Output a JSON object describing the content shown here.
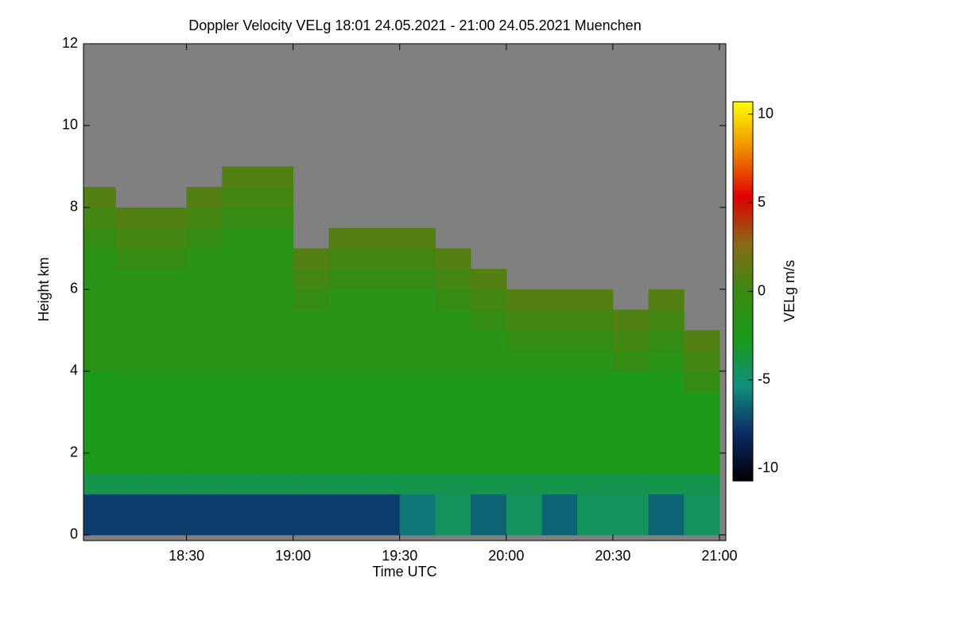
{
  "chart_data": {
    "type": "heatmap",
    "title": "Doppler Velocity VELg   18:01 24.05.2021 - 21:00 24.05.2021 Muenchen",
    "x_label": "Time UTC",
    "y_label": "Height km",
    "colorbar_label": "VELg m/s",
    "xlim": [
      18.0167,
      21.03
    ],
    "ylim": [
      -0.14,
      12
    ],
    "xticks": [
      {
        "value": 18.5,
        "label": "18:30"
      },
      {
        "value": 19,
        "label": "19:00"
      },
      {
        "value": 19.5,
        "label": "19:30"
      },
      {
        "value": 20,
        "label": "20:00"
      },
      {
        "value": 20.5,
        "label": "20:30"
      },
      {
        "value": 21,
        "label": "21:00"
      }
    ],
    "yticks": [
      0,
      2,
      4,
      6,
      8,
      10,
      12
    ],
    "clim": [
      -10.7,
      10.7
    ],
    "cticks": [
      -10,
      -5,
      0,
      5,
      10
    ],
    "colormap": [
      "#000000",
      "#0b2a66",
      "#10907e",
      "#1a9a1a",
      "#3a8a10",
      "#8a6a18",
      "#e00000",
      "#f08c00",
      "#ffff00"
    ],
    "missing_color": "#808080",
    "x_bins": [
      18.0167,
      18.1667,
      18.3333,
      18.5,
      18.6667,
      18.8333,
      19,
      19.1667,
      19.3333,
      19.5,
      19.6667,
      19.8333,
      20,
      20.1667,
      20.3333,
      20.5,
      20.6667,
      20.8333,
      21
    ],
    "y_bins": [
      0,
      0.5,
      1,
      1.5,
      2,
      2.5,
      3,
      3.5,
      4,
      4.5,
      5,
      5.5,
      6,
      6.5,
      7,
      7.5,
      8,
      8.5,
      9,
      9.5,
      10,
      10.5,
      11,
      11.5,
      12
    ],
    "z": [
      [
        -7.5,
        -7.5,
        -4,
        -2.5,
        -2.5,
        -2.5,
        -2.5,
        -2.5,
        -1.5,
        -1.5,
        -1.5,
        -1.5,
        -1.5,
        -1.5,
        -0.5,
        0.3,
        0.8,
        null,
        null,
        null,
        null,
        null,
        null,
        null
      ],
      [
        -7.5,
        -7.5,
        -4,
        -2.5,
        -2.5,
        -2.5,
        -2.5,
        -2.5,
        -1.5,
        -1.5,
        -1.5,
        -1.5,
        -1.5,
        -0.5,
        0.3,
        0.8,
        null,
        null,
        null,
        null,
        null,
        null,
        null,
        null
      ],
      [
        -7.5,
        -7.5,
        -4,
        -2.5,
        -2.5,
        -2.5,
        -2.5,
        -2.5,
        -1.5,
        -1.5,
        -1.5,
        -1.5,
        -1.5,
        -0.5,
        0.3,
        0.8,
        null,
        null,
        null,
        null,
        null,
        null,
        null,
        null
      ],
      [
        -7.5,
        -7.5,
        -4,
        -2.5,
        -2.5,
        -2.5,
        -2.5,
        -2.5,
        -1.5,
        -1.5,
        -1.5,
        -1.5,
        -1.5,
        -1.5,
        -0.5,
        0.3,
        0.8,
        null,
        null,
        null,
        null,
        null,
        null,
        null
      ],
      [
        -7.5,
        -7.5,
        -4,
        -2.5,
        -2.5,
        -2.5,
        -2.5,
        -2.5,
        -1.5,
        -1.5,
        -1.5,
        -1.5,
        -1.5,
        -1.5,
        -1.5,
        -0.5,
        0.3,
        0.8,
        null,
        null,
        null,
        null,
        null,
        null
      ],
      [
        -7.5,
        -7.5,
        -4,
        -2.5,
        -2.5,
        -2.5,
        -2.5,
        -2.5,
        -1.5,
        -1.5,
        -1.5,
        -1.5,
        -1.5,
        -1.5,
        -1.5,
        -0.5,
        0.3,
        0.8,
        null,
        null,
        null,
        null,
        null,
        null
      ],
      [
        -7.5,
        -7.5,
        -4,
        -2.5,
        -2.5,
        -2.5,
        -2.5,
        -2.5,
        -1.5,
        -1.5,
        -1.5,
        -0.5,
        0.3,
        0.8,
        null,
        null,
        null,
        null,
        null,
        null,
        null,
        null,
        null,
        null
      ],
      [
        -7.5,
        -7.5,
        -4,
        -2.5,
        -2.5,
        -2.5,
        -2.5,
        -2.5,
        -1.5,
        -1.5,
        -1.5,
        -1.5,
        -0.5,
        0.3,
        0.8,
        null,
        null,
        null,
        null,
        null,
        null,
        null,
        null,
        null
      ],
      [
        -7.5,
        -7.5,
        -4,
        -2.5,
        -2.5,
        -2.5,
        -2.5,
        -2.5,
        -1.5,
        -1.5,
        -1.5,
        -1.5,
        -0.5,
        0.3,
        0.8,
        null,
        null,
        null,
        null,
        null,
        null,
        null,
        null,
        null
      ],
      [
        -6,
        -6,
        -4,
        -2.5,
        -2.5,
        -2.5,
        -2.5,
        -2.5,
        -1.5,
        -1.5,
        -1.5,
        -1.5,
        -0.5,
        0.3,
        0.8,
        null,
        null,
        null,
        null,
        null,
        null,
        null,
        null,
        null
      ],
      [
        -4.5,
        -4.5,
        -4,
        -2.5,
        -2.5,
        -2.5,
        -2.5,
        -2.5,
        -1.5,
        -1.5,
        -1.5,
        -0.5,
        0.3,
        0.8,
        null,
        null,
        null,
        null,
        null,
        null,
        null,
        null,
        null,
        null
      ],
      [
        -6.5,
        -6.5,
        -4,
        -2.5,
        -2.5,
        -2.5,
        -2.5,
        -2.5,
        -1.5,
        -1.5,
        -0.5,
        0.3,
        0.8,
        null,
        null,
        null,
        null,
        null,
        null,
        null,
        null,
        null,
        null,
        null
      ],
      [
        -4.5,
        -4.5,
        -4,
        -2.5,
        -2.5,
        -2.5,
        -2.5,
        -2.5,
        -1.5,
        -0.5,
        0.3,
        0.8,
        null,
        null,
        null,
        null,
        null,
        null,
        null,
        null,
        null,
        null,
        null,
        null
      ],
      [
        -6.5,
        -6.5,
        -4,
        -2.5,
        -2.5,
        -2.5,
        -2.5,
        -2.5,
        -1.5,
        -0.5,
        0.3,
        0.8,
        null,
        null,
        null,
        null,
        null,
        null,
        null,
        null,
        null,
        null,
        null,
        null
      ],
      [
        -4.5,
        -4.5,
        -4,
        -2.5,
        -2.5,
        -2.5,
        -2.5,
        -2.5,
        -1.5,
        -0.5,
        0.3,
        0.8,
        null,
        null,
        null,
        null,
        null,
        null,
        null,
        null,
        null,
        null,
        null,
        null
      ],
      [
        -4.5,
        -4.5,
        -4,
        -2.5,
        -2.5,
        -2.5,
        -2.5,
        -2.5,
        -0.5,
        0.3,
        0.8,
        null,
        null,
        null,
        null,
        null,
        null,
        null,
        null,
        null,
        null,
        null,
        null,
        null
      ],
      [
        -6.5,
        -6.5,
        -4,
        -2.5,
        -2.5,
        -2.5,
        -2.5,
        -2.5,
        -1.5,
        -0.5,
        0.3,
        0.8,
        null,
        null,
        null,
        null,
        null,
        null,
        null,
        null,
        null,
        null,
        null,
        null
      ],
      [
        -4.5,
        -4.5,
        -4,
        -2.5,
        -2.5,
        -2.5,
        -2.5,
        -0.5,
        0.3,
        0.8,
        null,
        null,
        null,
        null,
        null,
        null,
        null,
        null,
        null,
        null,
        null,
        null,
        null,
        null
      ]
    ]
  }
}
